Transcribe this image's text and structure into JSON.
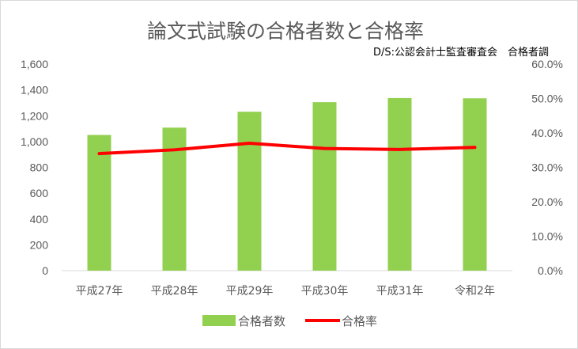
{
  "chart_data": {
    "type": "bar+line",
    "title": "論文式試験の合格者数と合格率",
    "source_note": "D/S:公認会計士監査審査会　合格者調",
    "categories": [
      "平成27年",
      "平成28年",
      "平成29年",
      "平成30年",
      "平成31年",
      "令和2年"
    ],
    "series": [
      {
        "name": "合格者数",
        "type": "bar",
        "axis": "left",
        "color": "#92d050",
        "values": [
          1051,
          1108,
          1231,
          1305,
          1337,
          1335
        ]
      },
      {
        "name": "合格率",
        "type": "line",
        "axis": "right",
        "color": "#ff0000",
        "values": [
          34.0,
          35.1,
          37.0,
          35.5,
          35.2,
          35.8
        ]
      }
    ],
    "y_left": {
      "min": 0,
      "max": 1600,
      "step": 200,
      "tick_labels": [
        "0",
        "200",
        "400",
        "600",
        "800",
        "1,000",
        "1,200",
        "1,400",
        "1,600"
      ]
    },
    "y_right": {
      "min": 0,
      "max": 60,
      "step": 10,
      "tick_labels": [
        "0.0%",
        "10.0%",
        "20.0%",
        "30.0%",
        "40.0%",
        "50.0%",
        "60.0%"
      ]
    },
    "grid": false,
    "legend_position": "bottom"
  }
}
